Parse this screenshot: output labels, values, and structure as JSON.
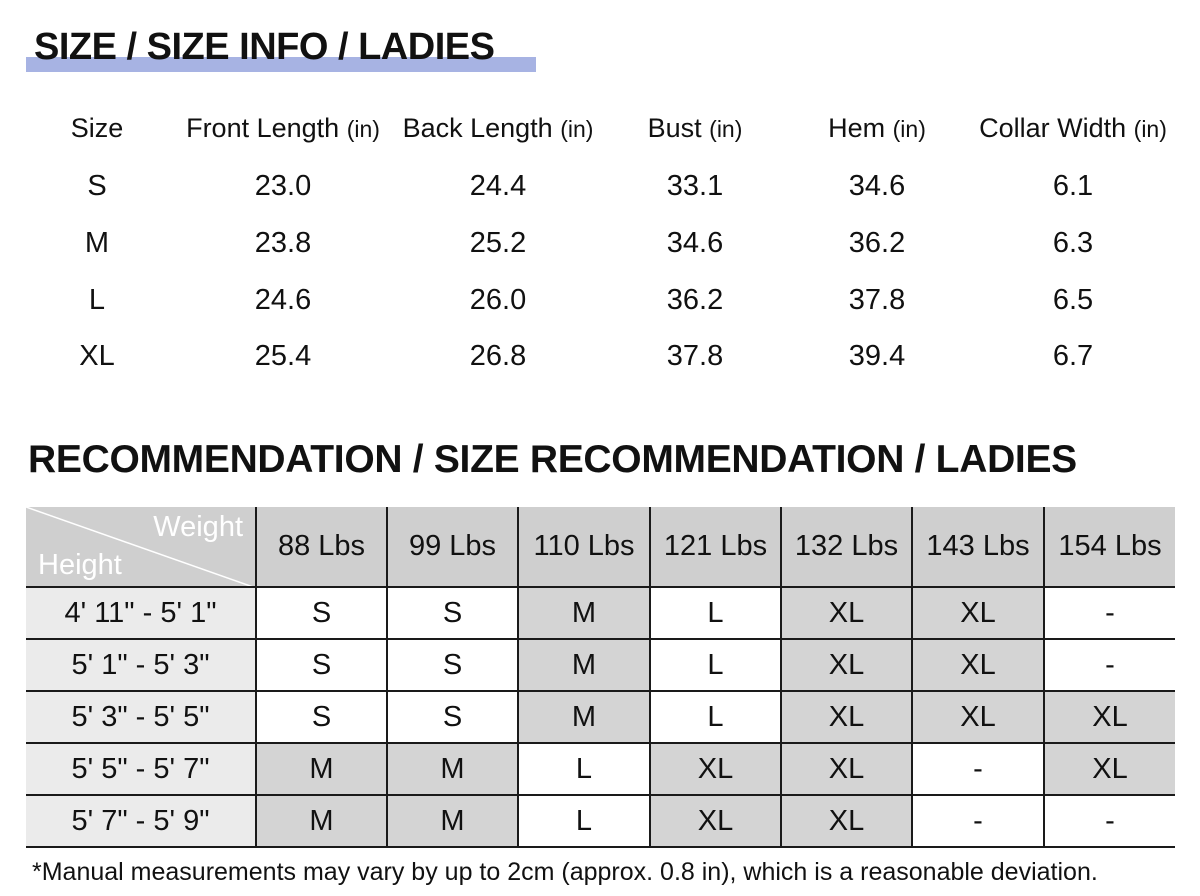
{
  "size_info": {
    "title": "SIZE / SIZE INFO / LADIES",
    "highlight_color": "#a7b3e3",
    "columns": [
      {
        "name": "Size",
        "unit": ""
      },
      {
        "name": "Front Length",
        "unit": "(in)"
      },
      {
        "name": "Back Length",
        "unit": "(in)"
      },
      {
        "name": "Bust",
        "unit": "(in)"
      },
      {
        "name": "Hem",
        "unit": "(in)"
      },
      {
        "name": "Collar Width",
        "unit": "(in)"
      }
    ],
    "rows": [
      [
        "S",
        "23.0",
        "24.4",
        "33.1",
        "34.6",
        "6.1"
      ],
      [
        "M",
        "23.8",
        "25.2",
        "34.6",
        "36.2",
        "6.3"
      ],
      [
        "L",
        "24.6",
        "26.0",
        "36.2",
        "37.8",
        "6.5"
      ],
      [
        "XL",
        "25.4",
        "26.8",
        "37.8",
        "39.4",
        "6.7"
      ]
    ]
  },
  "recommendation": {
    "title": "RECOMMENDATION / SIZE RECOMMENDATION / LADIES",
    "corner_top": "Weight",
    "corner_bottom": "Height",
    "weights": [
      "88 Lbs",
      "99 Lbs",
      "110 Lbs",
      "121 Lbs",
      "132 Lbs",
      "143 Lbs",
      "154 Lbs"
    ],
    "rows": [
      {
        "height": "4' 11\" - 5' 1\"",
        "sizes": [
          "S",
          "S",
          "M",
          "L",
          "XL",
          "XL",
          "-"
        ]
      },
      {
        "height": "5' 1\" - 5' 3\"",
        "sizes": [
          "S",
          "S",
          "M",
          "L",
          "XL",
          "XL",
          "-"
        ]
      },
      {
        "height": "5' 3\" - 5' 5\"",
        "sizes": [
          "S",
          "S",
          "M",
          "L",
          "XL",
          "XL",
          "XL"
        ]
      },
      {
        "height": "5' 5\" - 5' 7\"",
        "sizes": [
          "M",
          "M",
          "L",
          "XL",
          "XL",
          "-",
          "XL"
        ]
      },
      {
        "height": "5' 7\" - 5' 9\"",
        "sizes": [
          "M",
          "M",
          "L",
          "XL",
          "XL",
          "-",
          "-"
        ]
      }
    ],
    "shade_color": "#d4d4d4",
    "header_color": "#cfcfcf",
    "corner_color": "#333333"
  },
  "footnote": "*Manual measurements may vary by up to 2cm (approx. 0.8 in), which is a reasonable deviation."
}
